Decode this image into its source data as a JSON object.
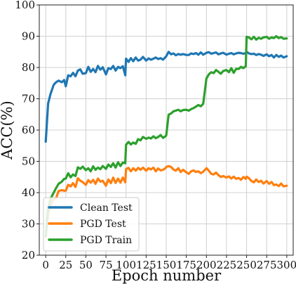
{
  "chart_data": {
    "type": "line",
    "xlabel": "Epoch number",
    "ylabel": "ACC(%)",
    "xlim": [
      -8,
      308
    ],
    "ylim": [
      20,
      100
    ],
    "xticks": [
      0,
      25,
      50,
      75,
      100,
      125,
      150,
      175,
      200,
      225,
      250,
      275,
      300
    ],
    "yticks": [
      20,
      30,
      40,
      50,
      60,
      70,
      80,
      90,
      100
    ],
    "grid": true,
    "legend_position": "lower-left",
    "series": [
      {
        "name": "Clean Test",
        "color": "#1f77b4",
        "x": [
          0,
          3,
          6,
          10,
          13,
          16,
          20,
          23,
          25,
          28,
          31,
          34,
          37,
          40,
          43,
          46,
          50,
          53,
          56,
          59,
          62,
          65,
          68,
          71,
          75,
          78,
          81,
          84,
          87,
          90,
          93,
          96,
          99,
          100,
          103,
          106,
          109,
          112,
          115,
          118,
          121,
          125,
          128,
          131,
          134,
          137,
          140,
          143,
          146,
          149,
          150,
          153,
          156,
          159,
          162,
          165,
          168,
          171,
          175,
          178,
          181,
          184,
          187,
          190,
          193,
          196,
          200,
          203,
          206,
          209,
          212,
          215,
          218,
          221,
          225,
          228,
          231,
          234,
          237,
          240,
          243,
          246,
          249,
          250,
          253,
          256,
          259,
          262,
          265,
          268,
          271,
          275,
          278,
          281,
          284,
          287,
          290,
          293,
          296,
          300
        ],
        "y": [
          56.3,
          68.5,
          71.5,
          74.5,
          75.3,
          75.8,
          75.3,
          76.0,
          74.0,
          77.5,
          77.2,
          78.3,
          77.2,
          79.0,
          79.4,
          78.0,
          78.2,
          80.2,
          78.6,
          79.5,
          78.5,
          80.5,
          79.3,
          80.1,
          77.8,
          79.8,
          79.5,
          80.5,
          79.0,
          80.2,
          79.8,
          80.4,
          77.5,
          82.8,
          81.8,
          83.0,
          82.0,
          83.2,
          82.2,
          82.5,
          83.4,
          82.2,
          82.9,
          82.5,
          82.8,
          83.2,
          82.7,
          83.0,
          82.5,
          83.3,
          83.6,
          85.0,
          84.2,
          84.5,
          83.9,
          84.3,
          84.1,
          84.3,
          84.0,
          84.0,
          84.5,
          84.3,
          84.6,
          84.1,
          84.8,
          84.1,
          84.7,
          84.9,
          84.4,
          84.6,
          84.8,
          84.2,
          84.5,
          84.7,
          84.1,
          84.4,
          84.6,
          84.2,
          84.5,
          84.7,
          84.6,
          84.4,
          84.6,
          85.0,
          84.5,
          84.3,
          84.4,
          84.0,
          84.3,
          84.1,
          83.7,
          84.2,
          83.6,
          84.0,
          83.2,
          84.0,
          83.4,
          83.8,
          83.2,
          83.6
        ]
      },
      {
        "name": "PGD Test",
        "color": "#ff7f0e",
        "x": [
          0,
          3,
          6,
          10,
          13,
          16,
          20,
          23,
          25,
          28,
          31,
          34,
          37,
          40,
          43,
          46,
          50,
          53,
          56,
          59,
          62,
          65,
          68,
          71,
          75,
          78,
          81,
          84,
          87,
          90,
          93,
          96,
          99,
          100,
          103,
          106,
          109,
          112,
          115,
          118,
          121,
          125,
          128,
          131,
          134,
          137,
          140,
          143,
          146,
          149,
          150,
          153,
          156,
          159,
          162,
          165,
          168,
          171,
          175,
          178,
          181,
          184,
          187,
          190,
          193,
          196,
          200,
          203,
          206,
          209,
          212,
          215,
          218,
          221,
          225,
          228,
          231,
          234,
          237,
          240,
          243,
          246,
          249,
          250,
          253,
          256,
          259,
          262,
          265,
          268,
          271,
          275,
          278,
          281,
          284,
          287,
          290,
          293,
          296,
          300
        ],
        "y": [
          25.8,
          33.5,
          36.0,
          38.0,
          38.3,
          40.5,
          40.8,
          40.6,
          40.6,
          42.5,
          42.0,
          43.0,
          41.8,
          44.6,
          43.8,
          43.4,
          42.5,
          44.0,
          43.2,
          44.1,
          42.8,
          44.5,
          43.5,
          43.8,
          42.2,
          44.2,
          43.0,
          44.8,
          43.1,
          44.5,
          43.2,
          44.8,
          43.3,
          47.5,
          47.9,
          46.8,
          47.8,
          47.0,
          47.9,
          47.3,
          48.0,
          47.0,
          47.8,
          47.4,
          48.0,
          46.8,
          47.7,
          47.1,
          47.3,
          47.8,
          48.2,
          48.5,
          48.2,
          47.4,
          47.0,
          47.8,
          46.6,
          47.3,
          46.5,
          46.0,
          46.8,
          47.1,
          46.6,
          46.8,
          46.2,
          46.7,
          47.8,
          47.0,
          46.0,
          45.8,
          46.4,
          45.6,
          45.0,
          45.3,
          44.8,
          45.2,
          44.5,
          45.1,
          44.4,
          44.7,
          44.1,
          45.0,
          44.4,
          45.1,
          44.6,
          43.7,
          43.3,
          44.2,
          43.4,
          43.8,
          42.9,
          43.7,
          42.8,
          43.4,
          42.4,
          42.6,
          42.1,
          42.9,
          42.0,
          42.2
        ]
      },
      {
        "name": "PGD Train",
        "color": "#2ca02c",
        "x": [
          0,
          3,
          6,
          10,
          13,
          16,
          20,
          23,
          25,
          28,
          31,
          34,
          37,
          40,
          43,
          46,
          50,
          53,
          56,
          59,
          62,
          65,
          68,
          71,
          75,
          78,
          81,
          84,
          87,
          90,
          93,
          96,
          99,
          100,
          103,
          106,
          109,
          112,
          115,
          118,
          121,
          125,
          128,
          131,
          134,
          137,
          140,
          143,
          146,
          149,
          150,
          153,
          156,
          159,
          162,
          165,
          168,
          171,
          175,
          178,
          181,
          184,
          187,
          190,
          193,
          196,
          200,
          203,
          206,
          209,
          212,
          215,
          218,
          221,
          225,
          228,
          231,
          234,
          237,
          240,
          243,
          246,
          249,
          250,
          253,
          256,
          259,
          262,
          265,
          268,
          271,
          275,
          278,
          281,
          284,
          287,
          290,
          293,
          296,
          300
        ],
        "y": [
          26.2,
          35.0,
          38.0,
          40.0,
          41.5,
          42.8,
          43.5,
          44.4,
          44.5,
          46.2,
          44.9,
          45.8,
          45.3,
          48.1,
          47.6,
          48.3,
          47.2,
          47.8,
          46.8,
          48.4,
          47.3,
          48.0,
          47.5,
          48.5,
          47.6,
          49.0,
          48.2,
          49.4,
          48.0,
          49.7,
          48.5,
          49.6,
          49.4,
          55.3,
          56.2,
          55.4,
          56.0,
          55.6,
          57.1,
          56.7,
          57.8,
          57.2,
          57.6,
          57.3,
          58.0,
          57.4,
          57.8,
          58.4,
          57.5,
          58.0,
          58.3,
          64.9,
          65.3,
          66.0,
          66.2,
          66.5,
          66.0,
          66.4,
          66.5,
          66.2,
          66.7,
          67.0,
          67.5,
          68.0,
          67.6,
          68.4,
          76.5,
          77.8,
          78.5,
          78.2,
          79.2,
          78.6,
          78.0,
          78.9,
          79.2,
          78.5,
          79.8,
          78.3,
          79.6,
          79.5,
          80.2,
          79.8,
          80.4,
          89.8,
          89.6,
          89.0,
          89.8,
          88.9,
          89.5,
          89.2,
          89.6,
          89.8,
          89.2,
          89.6,
          89.4,
          90.0,
          89.4,
          89.7,
          89.2,
          89.3
        ]
      }
    ]
  }
}
